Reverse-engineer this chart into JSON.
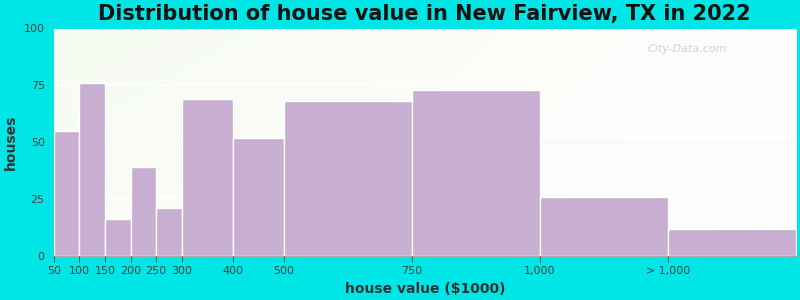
{
  "title": "Distribution of house value in New Fairview, TX in 2022",
  "xlabel": "house value ($1000)",
  "ylabel": "houses",
  "bar_values": [
    55,
    76,
    16,
    39,
    21,
    69,
    52,
    68,
    73,
    26,
    12
  ],
  "bar_widths": [
    50,
    50,
    50,
    50,
    50,
    100,
    100,
    250,
    250,
    250,
    250
  ],
  "bar_lefts": [
    50,
    100,
    150,
    200,
    250,
    300,
    400,
    500,
    750,
    1000,
    1250
  ],
  "bar_color": "#c8aed0",
  "bar_edge_color": "#ffffff",
  "ylim": [
    0,
    100
  ],
  "yticks": [
    0,
    25,
    50,
    75,
    100
  ],
  "outer_bg": "#00e5e5",
  "title_fontsize": 15,
  "axis_label_fontsize": 10,
  "tick_fontsize": 8,
  "watermark_text": "City-Data.com",
  "xtick_positions": [
    50,
    100,
    150,
    200,
    250,
    300,
    400,
    500,
    750,
    1000,
    1250
  ],
  "xtick_labels": [
    "50",
    "100",
    "150",
    "200",
    "250",
    "300",
    "400",
    "500",
    "750",
    "1,000",
    "> 1,000"
  ],
  "grid_color": "#ffffff",
  "xlim_left": 50,
  "xlim_right": 1500,
  "hline_y": 50,
  "hline_color": "#e8c8c8"
}
